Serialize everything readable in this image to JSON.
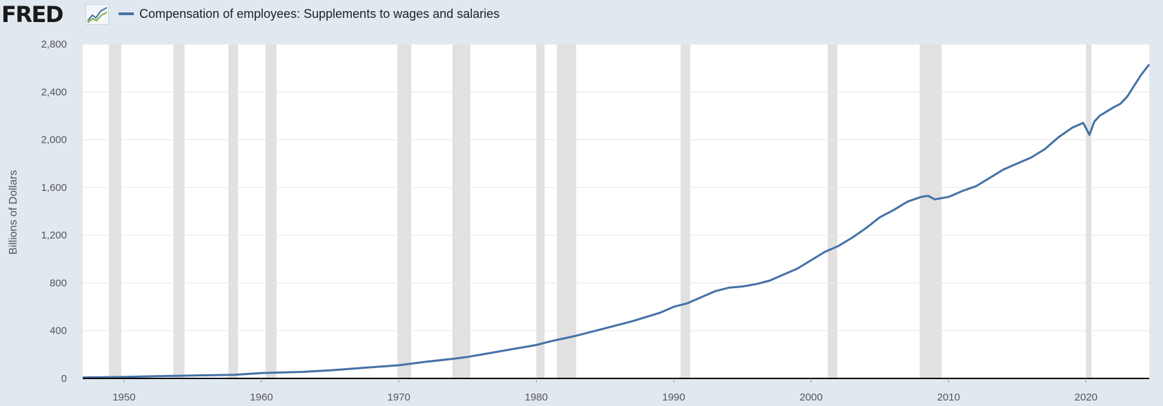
{
  "header": {
    "logo_text": "FRED",
    "legend_label": "Compensation of employees: Supplements to wages and salaries"
  },
  "colors": {
    "series": "#4572a7",
    "recession": "#e1e1e1",
    "grid": "#e6e6e6",
    "background": "#e1e9f0",
    "plot": "#ffffff"
  },
  "icons": {
    "logo_chart": "mini-line-chart-icon"
  },
  "chart_data": {
    "type": "line",
    "title": "",
    "xlabel": "",
    "ylabel": "Billions of Dollars",
    "xlim": [
      1947,
      2024.6
    ],
    "ylim": [
      0,
      2800
    ],
    "yticks": [
      0,
      400,
      800,
      1200,
      1600,
      2000,
      2400,
      2800
    ],
    "ytick_labels": [
      "0",
      "400",
      "800",
      "1,200",
      "1,600",
      "2,000",
      "2,400",
      "2,800"
    ],
    "xticks": [
      1950,
      1960,
      1970,
      1980,
      1990,
      2000,
      2010,
      2020
    ],
    "xtick_labels": [
      "1950",
      "1960",
      "1970",
      "1980",
      "1990",
      "2000",
      "2010",
      "2020"
    ],
    "grid": true,
    "recessions": [
      [
        1948.9,
        1949.8
      ],
      [
        1953.6,
        1954.4
      ],
      [
        1957.6,
        1958.3
      ],
      [
        1960.3,
        1961.1
      ],
      [
        1969.9,
        1970.9
      ],
      [
        1973.9,
        1975.2
      ],
      [
        1980.0,
        1980.6
      ],
      [
        1981.5,
        1982.9
      ],
      [
        1990.5,
        1991.2
      ],
      [
        2001.2,
        2001.9
      ],
      [
        2007.9,
        2009.5
      ],
      [
        2020.0,
        2020.4
      ]
    ],
    "series": [
      {
        "name": "Compensation of employees: Supplements to wages and salaries",
        "x": [
          1947,
          1950,
          1952,
          1955,
          1958,
          1960,
          1963,
          1965,
          1967,
          1970,
          1972,
          1974,
          1975,
          1976,
          1978,
          1980,
          1981,
          1982,
          1983,
          1985,
          1987,
          1989,
          1990,
          1991,
          1992,
          1993,
          1994,
          1995,
          1996,
          1997,
          1998,
          1999,
          2000,
          2001,
          2002,
          2003,
          2004,
          2005,
          2006,
          2007,
          2008,
          2008.5,
          2009,
          2010,
          2011,
          2012,
          2013,
          2014,
          2015,
          2016,
          2017,
          2018,
          2019,
          2019.8,
          2020.25,
          2020.6,
          2021,
          2022,
          2022.5,
          2023,
          2024,
          2024.6
        ],
        "y": [
          8,
          12,
          18,
          25,
          30,
          45,
          55,
          68,
          85,
          110,
          140,
          165,
          180,
          200,
          240,
          280,
          310,
          335,
          360,
          420,
          480,
          550,
          600,
          630,
          680,
          730,
          760,
          770,
          790,
          820,
          870,
          920,
          990,
          1060,
          1110,
          1180,
          1260,
          1350,
          1410,
          1480,
          1520,
          1530,
          1500,
          1520,
          1570,
          1610,
          1680,
          1750,
          1800,
          1850,
          1920,
          2020,
          2100,
          2140,
          2040,
          2150,
          2200,
          2270,
          2300,
          2360,
          2540,
          2630
        ]
      }
    ]
  }
}
